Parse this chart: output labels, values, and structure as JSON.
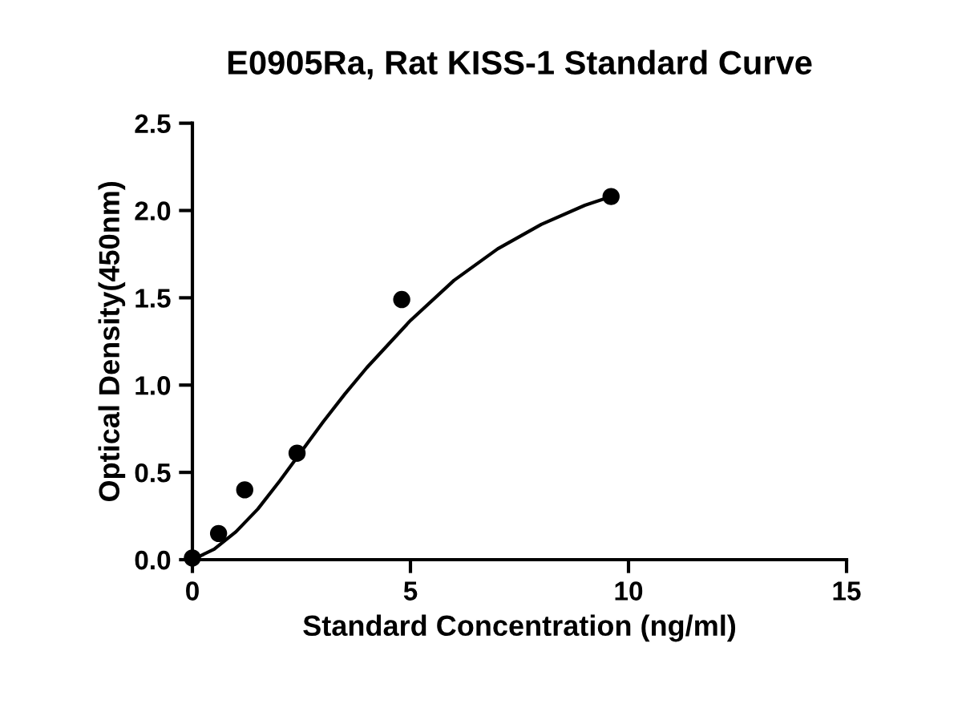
{
  "chart_data": {
    "type": "scatter",
    "title": "E0905Ra, Rat KISS-1 Standard Curve",
    "xlabel": "Standard Concentration (ng/ml)",
    "ylabel": "Optical Density(450nm)",
    "series": [
      {
        "color": "#000000",
        "marker": "circle",
        "x": [
          0,
          0.6,
          1.2,
          2.4,
          4.8,
          9.6
        ],
        "values": [
          0.01,
          0.15,
          0.4,
          0.61,
          1.49,
          2.08
        ]
      },
      {
        "type": "line",
        "color": "#000000",
        "marker": "none",
        "x": [
          0,
          0.5,
          1,
          1.5,
          2,
          2.5,
          3,
          3.5,
          4,
          5,
          6,
          7,
          8,
          9,
          9.6
        ],
        "values": [
          0,
          0.06,
          0.16,
          0.29,
          0.45,
          0.62,
          0.79,
          0.95,
          1.1,
          1.37,
          1.6,
          1.78,
          1.92,
          2.03,
          2.08
        ]
      }
    ],
    "xlim": [
      0,
      15
    ],
    "xticks": [
      0,
      5,
      10,
      15
    ],
    "ylim": [
      0,
      2.5
    ],
    "yticks": [
      {
        "value": 0,
        "label": "0.0"
      },
      0.5,
      {
        "value": 1,
        "label": "1.0"
      },
      1.5,
      {
        "value": 2,
        "label": "2.0"
      },
      2.5
    ],
    "grid": false,
    "legend": false
  }
}
